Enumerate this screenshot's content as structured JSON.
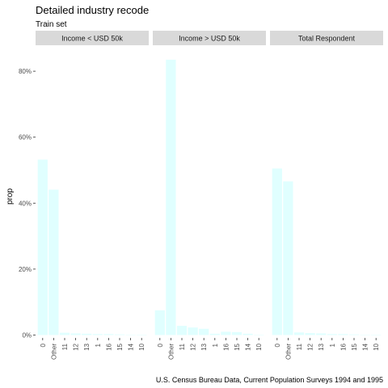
{
  "chart_data": {
    "type": "bar",
    "title": "Detailed industry recode",
    "subtitle": "Train set",
    "ylabel": "prop",
    "xlabel": "",
    "caption": "U.S. Census Bureau Data, Current Population Surveys 1994 and 1995",
    "ylim": [
      0,
      0.86
    ],
    "yticks": [
      0,
      0.2,
      0.4,
      0.6,
      0.8
    ],
    "ytick_labels": [
      "0%",
      "20%",
      "40%",
      "60%",
      "80%"
    ],
    "grid": false,
    "bar_color": "#e0ffff",
    "strip_color": "#d9d9d9",
    "categories": [
      "0",
      "Other",
      "11",
      "12",
      "13",
      "1",
      "16",
      "15",
      "14",
      "10"
    ],
    "panels": [
      {
        "name": "Income < USD 50k",
        "values": [
          0.532,
          0.441,
          0.007,
          0.005,
          0.004,
          0.003,
          0.003,
          0.002,
          0.001,
          0.0005
        ]
      },
      {
        "name": "Income > USD 50k",
        "values": [
          0.075,
          0.835,
          0.028,
          0.023,
          0.019,
          0.004,
          0.01,
          0.009,
          0.004,
          0.0005
        ]
      },
      {
        "name": "Total Respondent",
        "values": [
          0.505,
          0.466,
          0.008,
          0.006,
          0.005,
          0.003,
          0.003,
          0.002,
          0.001,
          0.0005
        ]
      }
    ]
  }
}
